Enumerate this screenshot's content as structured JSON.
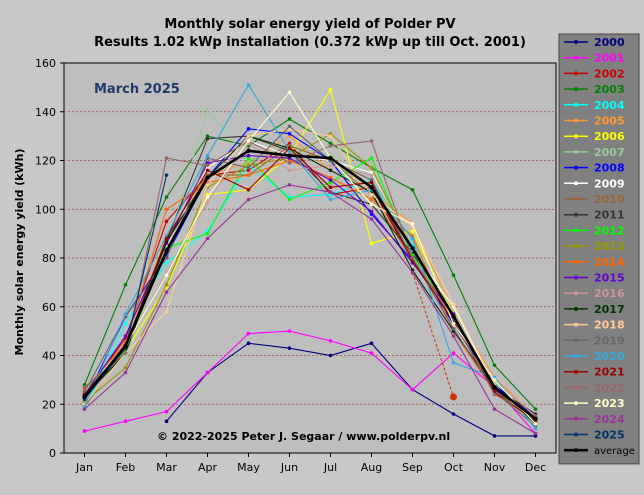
{
  "chart_data": {
    "type": "line",
    "title": "Monthly solar energy yield of Polder PV",
    "subtitle": "Results 1.02 kWp installation (0.372 kWp up till Oct. 2001)",
    "ylabel": "Monthly solar energy yield (kWh)",
    "xlabel": "",
    "annotation": "March 2025",
    "copyright": "© 2022-2025 Peter J. Segaar / www.polderpv.nl",
    "ylim": [
      0,
      160
    ],
    "yticks": [
      0,
      20,
      40,
      60,
      80,
      100,
      120,
      140,
      160
    ],
    "grid": true,
    "legend_position": "right",
    "categories": [
      "Jan",
      "Feb",
      "Mar",
      "Apr",
      "May",
      "Jun",
      "Jul",
      "Aug",
      "Sep",
      "Oct",
      "Nov",
      "Dec"
    ],
    "series": [
      {
        "name": "2000",
        "color": "#00007f",
        "values": [
          null,
          null,
          13,
          33,
          45,
          43,
          40,
          45,
          26,
          16,
          7,
          7
        ]
      },
      {
        "name": "2001",
        "color": "#ff00ff",
        "values": [
          9,
          13,
          17,
          33,
          49,
          50,
          46,
          41,
          26,
          41,
          27,
          8
        ]
      },
      {
        "name": "2002",
        "color": "#cc0000",
        "values": [
          24,
          47,
          95,
          114,
          116,
          127,
          106,
          109,
          79,
          54,
          28,
          14
        ]
      },
      {
        "name": "2003",
        "color": "#008000",
        "values": [
          28,
          69,
          105,
          130,
          126,
          137,
          127,
          117,
          108,
          73,
          36,
          18
        ]
      },
      {
        "name": "2004",
        "color": "#00ffff",
        "values": [
          18,
          53,
          78,
          91,
          118,
          105,
          106,
          112,
          85,
          56,
          28,
          13
        ]
      },
      {
        "name": "2005",
        "color": "#ff9933",
        "values": [
          22,
          44,
          89,
          114,
          119,
          130,
          116,
          107,
          94,
          58,
          31,
          15
        ]
      },
      {
        "name": "2006",
        "color": "#ffff00",
        "values": [
          26,
          42,
          68,
          106,
          108,
          122,
          149,
          86,
          91,
          57,
          26,
          13
        ]
      },
      {
        "name": "2007",
        "color": "#99cc99",
        "values": [
          24,
          40,
          84,
          141,
          120,
          126,
          122,
          115,
          89,
          58,
          29,
          12
        ]
      },
      {
        "name": "2008",
        "color": "#0000ff",
        "values": [
          21,
          56,
          81,
          113,
          133,
          131,
          120,
          98,
          79,
          53,
          28,
          15
        ]
      },
      {
        "name": "2009",
        "color": "#ffffff",
        "values": [
          25,
          44,
          85,
          117,
          128,
          122,
          120,
          115,
          83,
          60,
          27,
          14
        ]
      },
      {
        "name": "2010",
        "color": "#996633",
        "values": [
          19,
          42,
          86,
          114,
          114,
          126,
          120,
          106,
          79,
          57,
          26,
          12
        ]
      },
      {
        "name": "2011",
        "color": "#333333",
        "values": [
          22,
          44,
          87,
          129,
          130,
          124,
          107,
          102,
          82,
          56,
          27,
          16
        ]
      },
      {
        "name": "2012",
        "color": "#00ff00",
        "values": [
          26,
          42,
          84,
          90,
          121,
          104,
          111,
          121,
          81,
          57,
          25,
          13
        ]
      },
      {
        "name": "2013",
        "color": "#999900",
        "values": [
          21,
          35,
          69,
          109,
          118,
          121,
          131,
          117,
          84,
          57,
          25,
          15
        ]
      },
      {
        "name": "2014",
        "color": "#ff6600",
        "values": [
          26,
          45,
          100,
          111,
          114,
          120,
          113,
          104,
          89,
          50,
          25,
          13
        ]
      },
      {
        "name": "2015",
        "color": "#6600cc",
        "values": [
          24,
          48,
          86,
          119,
          122,
          121,
          112,
          99,
          78,
          57,
          26,
          14
        ]
      },
      {
        "name": "2016",
        "color": "#cc9999",
        "values": [
          22,
          43,
          74,
          103,
          127,
          116,
          118,
          114,
          84,
          49,
          30,
          15
        ]
      },
      {
        "name": "2017",
        "color": "#003300",
        "values": [
          23,
          41,
          87,
          113,
          130,
          125,
          116,
          107,
          75,
          50,
          27,
          12
        ]
      },
      {
        "name": "2018",
        "color": "#ffcc99",
        "values": [
          20,
          41,
          58,
          110,
          130,
          133,
          130,
          106,
          93,
          61,
          28,
          11
        ]
      },
      {
        "name": "2019",
        "color": "#666666",
        "values": [
          25,
          56,
          80,
          121,
          117,
          134,
          120,
          112,
          80,
          51,
          25,
          11
        ]
      },
      {
        "name": "2020",
        "color": "#33aadd",
        "values": [
          19,
          57,
          89,
          122,
          151,
          124,
          104,
          108,
          88,
          37,
          31,
          10
        ]
      },
      {
        "name": "2021",
        "color": "#990000",
        "values": [
          24,
          44,
          88,
          116,
          108,
          125,
          109,
          111,
          79,
          54,
          25,
          13
        ]
      },
      {
        "name": "2022",
        "color": "#996666",
        "values": [
          27,
          41,
          121,
          118,
          128,
          119,
          126,
          128,
          80,
          55,
          24,
          15
        ]
      },
      {
        "name": "2023",
        "color": "#ffffcc",
        "values": [
          22,
          44,
          73,
          105,
          128,
          148,
          121,
          102,
          94,
          53,
          30,
          12
        ]
      },
      {
        "name": "2024",
        "color": "#993399",
        "values": [
          18,
          33,
          66,
          88,
          104,
          110,
          107,
          96,
          74,
          48,
          18,
          8
        ]
      },
      {
        "name": "2025",
        "color": "#003366",
        "values": [
          22,
          43,
          114,
          null,
          null,
          null,
          null,
          null,
          null,
          null,
          null,
          null
        ]
      },
      {
        "name": "average",
        "color": "#000000",
        "values": [
          23,
          44,
          83,
          113,
          124,
          122,
          121,
          109,
          84,
          56,
          27,
          14
        ]
      }
    ],
    "extra_point": {
      "category": "Oct",
      "value": 23,
      "color": "#cc3300"
    }
  }
}
